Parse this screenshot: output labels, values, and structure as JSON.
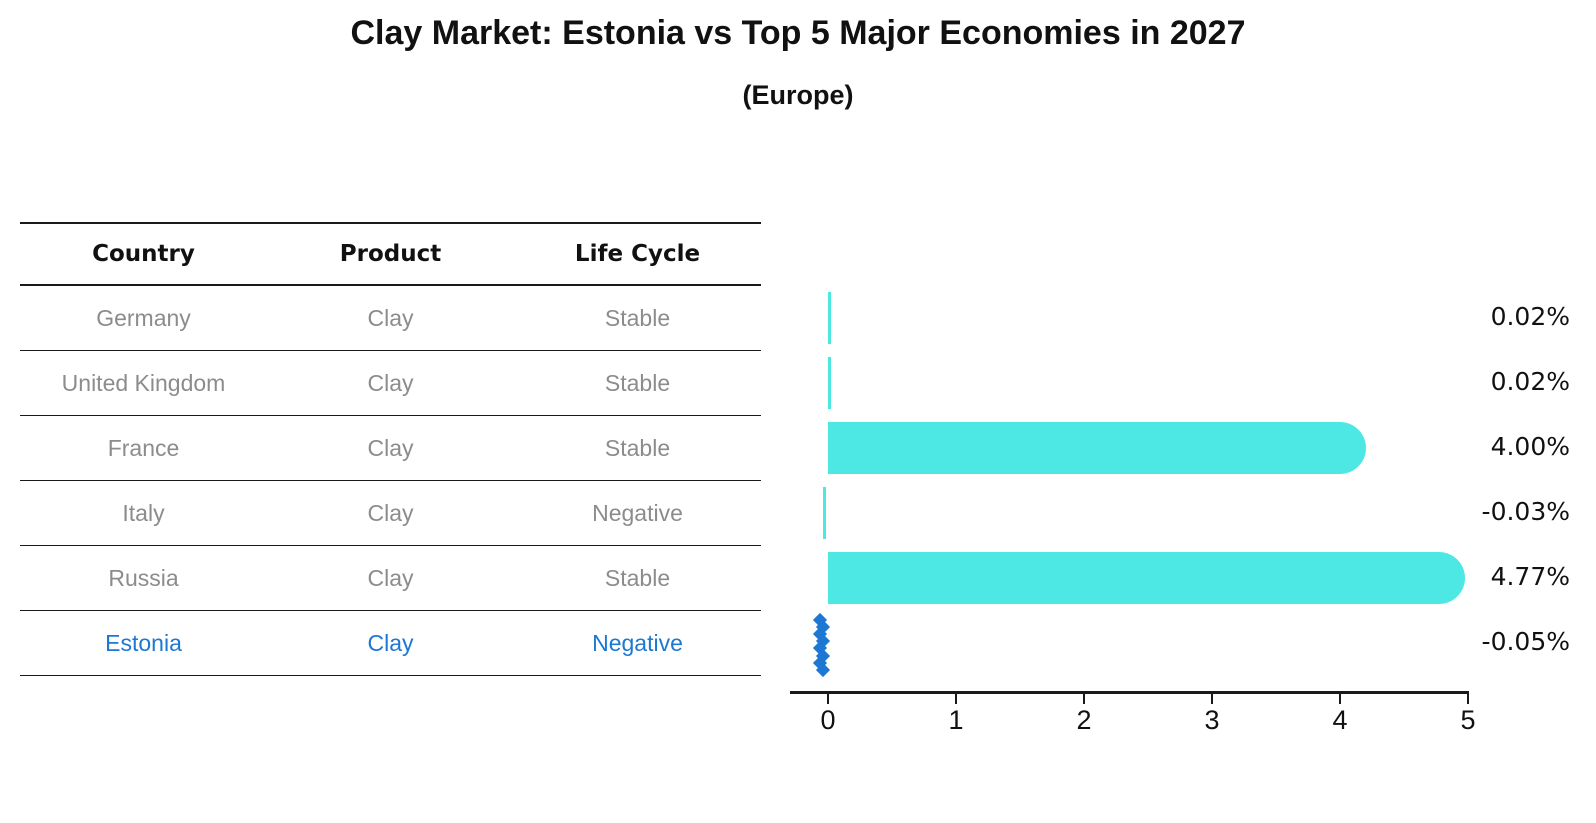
{
  "header": {
    "title": "Clay Market: Estonia vs Top 5 Major Economies in 2027",
    "subtitle": "(Europe)"
  },
  "table": {
    "columns": [
      "Country",
      "Product",
      "Life Cycle"
    ],
    "rows": [
      {
        "country": "Germany",
        "product": "Clay",
        "life_cycle": "Stable",
        "highlight": false
      },
      {
        "country": "United Kingdom",
        "product": "Clay",
        "life_cycle": "Stable",
        "highlight": false
      },
      {
        "country": "France",
        "product": "Clay",
        "life_cycle": "Stable",
        "highlight": false
      },
      {
        "country": "Italy",
        "product": "Clay",
        "life_cycle": "Negative",
        "highlight": false
      },
      {
        "country": "Russia",
        "product": "Clay",
        "life_cycle": "Stable",
        "highlight": false
      },
      {
        "country": "Estonia",
        "product": "Clay",
        "life_cycle": "Negative",
        "highlight": true
      }
    ]
  },
  "chart_data": {
    "type": "bar",
    "orientation": "horizontal",
    "title": "Clay Market: Estonia vs Top 5 Major Economies in 2027",
    "subtitle": "(Europe)",
    "categories": [
      "Germany",
      "United Kingdom",
      "France",
      "Italy",
      "Russia",
      "Estonia"
    ],
    "values": [
      0.02,
      0.02,
      4.0,
      -0.03,
      4.77,
      -0.05
    ],
    "value_labels": [
      "0.02%",
      "0.02%",
      "4.00%",
      "-0.03%",
      "4.77%",
      "-0.05%"
    ],
    "x_ticks": [
      0,
      1,
      2,
      3,
      4,
      5
    ],
    "xlim": [
      -0.3,
      5
    ],
    "grid": false,
    "legend": false,
    "highlight_category": "Estonia",
    "highlight_marker": "dotted-diamond-column",
    "bar_color": "#4de8e4",
    "highlight_color": "#1c78d2"
  },
  "colors": {
    "bar": "#4de8e4",
    "highlight_blue": "#1c78d2",
    "table_line": "#1a1a1a",
    "row_text_gray": "#8c8c8c",
    "text_black": "#111111"
  }
}
